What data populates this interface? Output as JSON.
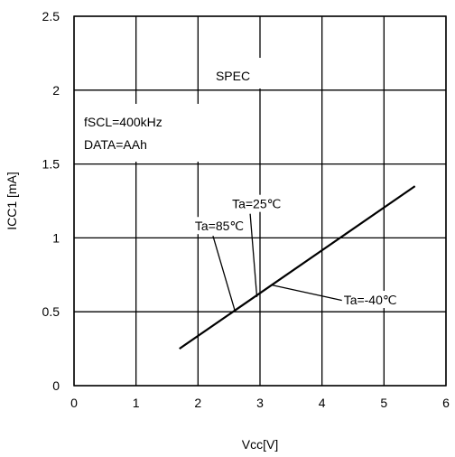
{
  "chart_data": {
    "type": "line",
    "xlabel": "Vcc[V]",
    "ylabel": "ICC1 [mA]",
    "xlim": [
      0,
      6
    ],
    "ylim": [
      0,
      2.5
    ],
    "grid": true,
    "x_ticks": [
      "0",
      "1",
      "2",
      "3",
      "4",
      "5",
      "6"
    ],
    "y_ticks": [
      "0",
      "0.5",
      "1",
      "1.5",
      "2",
      "2.5"
    ],
    "series": [
      {
        "x": [
          1.7,
          5.5
        ],
        "y": [
          0.25,
          1.35
        ]
      }
    ],
    "spec_label": "SPEC",
    "spec_line_y": 2.0,
    "conditions": [
      "fSCL=400kHz",
      "DATA=AAh"
    ],
    "callouts": [
      {
        "text": "Ta=25℃",
        "label_x": 2.55,
        "label_y": 1.2,
        "point_x": 2.95,
        "point_y": 0.6
      },
      {
        "text": "Ta=85℃",
        "label_x": 1.95,
        "label_y": 1.05,
        "point_x": 2.6,
        "point_y": 0.5
      },
      {
        "text": "Ta=-40℃",
        "label_x": 4.35,
        "label_y": 0.55,
        "point_x": 3.2,
        "point_y": 0.68
      }
    ],
    "line_color": "#000000"
  }
}
